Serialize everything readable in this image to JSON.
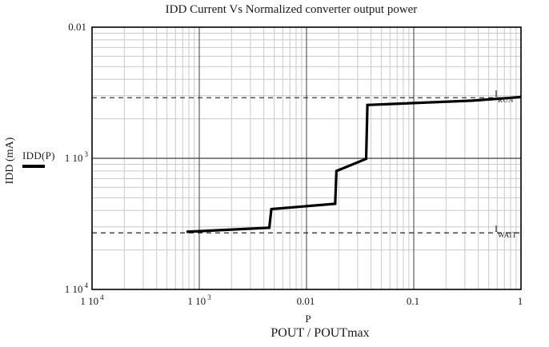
{
  "chart_data": {
    "type": "line",
    "title": "IDD Current Vs Normalized converter output power",
    "xlabel": "POUT / POUTmax",
    "xlabel_secondary": "P",
    "ylabel": "IDD (mA)",
    "x_scale": "log",
    "y_scale": "log",
    "xlim": [
      0.0001,
      1
    ],
    "ylim": [
      0.0001,
      0.01
    ],
    "grid": {
      "minor_color": "#c9c9c9",
      "major_color": "#3c3c3c",
      "border_color": "#000000",
      "minor_on": true
    },
    "curve_color": "#000000",
    "dashed_color": "#222222",
    "x_ticks": [
      {
        "value": 0.0001,
        "mant": "1 10",
        "exp": "4"
      },
      {
        "value": 0.001,
        "mant": "1 10",
        "exp": "3"
      },
      {
        "value": 0.01,
        "mant": "0.01",
        "exp": ""
      },
      {
        "value": 0.1,
        "mant": "0.1",
        "exp": ""
      },
      {
        "value": 1,
        "mant": "1",
        "exp": ""
      }
    ],
    "y_ticks": [
      {
        "value": 0.01,
        "mant": "0.01",
        "exp": ""
      },
      {
        "value": 0.001,
        "mant": "1 10",
        "exp": "3"
      },
      {
        "value": 0.0001,
        "mant": "1 10",
        "exp": "4"
      }
    ],
    "legend": {
      "label": "IDD(P)"
    },
    "series": [
      {
        "name": "IDD(P)",
        "points": [
          [
            0.00076,
            0.000275
          ],
          [
            0.0045,
            0.000295
          ],
          [
            0.0047,
            0.00041
          ],
          [
            0.0185,
            0.00045
          ],
          [
            0.019,
            0.0008
          ],
          [
            0.036,
            0.00099
          ],
          [
            0.037,
            0.00255
          ],
          [
            0.35,
            0.00275
          ],
          [
            1.0,
            0.00293
          ]
        ]
      }
    ],
    "annotations": [
      {
        "id": "run",
        "label_main": "I",
        "label_sub": "RUN",
        "y": 0.0029,
        "style": "dashed"
      },
      {
        "id": "wait",
        "label_main": "I",
        "label_sub": "WAIT",
        "y": 0.00027,
        "style": "dashed"
      }
    ]
  }
}
